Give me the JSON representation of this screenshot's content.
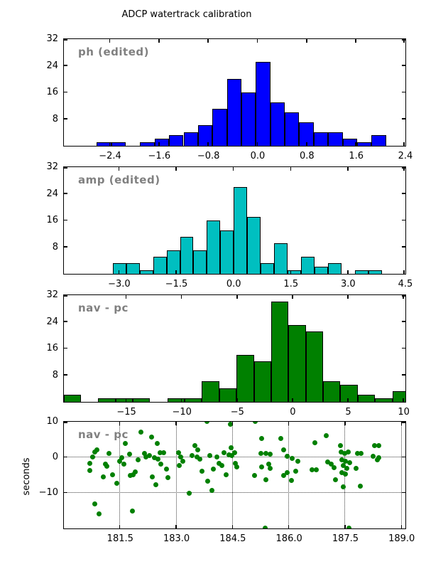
{
  "title": "ADCP watertrack calibration",
  "colors": {
    "hist_ph": "#0000ff",
    "hist_amp": "#00bfc0",
    "hist_nav": "#008000",
    "scatter_nav": "#008000",
    "panel_label_gray": "#808080",
    "axis_black": "#000000"
  },
  "bottom_axis_label": "seconds",
  "chart_data": [
    {
      "type": "bar",
      "subtype": "histogram",
      "label": "ph (edited)",
      "color": "#0000ff",
      "xlim": [
        -3.15,
        2.4
      ],
      "ylim": [
        0,
        32
      ],
      "bin_start": -2.61,
      "bin_width": 0.235,
      "values": [
        1,
        1,
        0,
        1,
        2,
        3,
        4,
        6,
        11,
        20,
        16,
        25,
        13,
        10,
        7,
        4,
        4,
        2,
        1,
        3
      ],
      "xticks": [
        {
          "v": -2.4,
          "label": "−2.4"
        },
        {
          "v": -1.6,
          "label": "−1.6"
        },
        {
          "v": -0.8,
          "label": "−0.8"
        },
        {
          "v": 0.0,
          "label": "0.0"
        },
        {
          "v": 0.8,
          "label": "0.8"
        },
        {
          "v": 1.6,
          "label": "1.6"
        },
        {
          "v": 2.4,
          "label": "2.4"
        }
      ],
      "yticks": [
        {
          "v": 8,
          "label": "8"
        },
        {
          "v": 16,
          "label": "16"
        },
        {
          "v": 24,
          "label": "24"
        },
        {
          "v": 32,
          "label": "32"
        }
      ],
      "grid": false
    },
    {
      "type": "bar",
      "subtype": "histogram",
      "label": "amp (edited)",
      "color": "#00bfc0",
      "xlim": [
        -4.45,
        4.5
      ],
      "ylim": [
        0,
        32
      ],
      "bin_start": -3.16,
      "bin_width": 0.3525,
      "values": [
        3,
        3,
        1,
        5,
        7,
        11,
        7,
        16,
        13,
        26,
        17,
        3,
        9,
        1,
        5,
        2,
        3,
        0,
        1,
        1
      ],
      "xticks": [
        {
          "v": -3.0,
          "label": "−3.0"
        },
        {
          "v": -1.5,
          "label": "−1.5"
        },
        {
          "v": 0.0,
          "label": "0.0"
        },
        {
          "v": 1.5,
          "label": "1.5"
        },
        {
          "v": 3.0,
          "label": "3.0"
        },
        {
          "v": 4.5,
          "label": "4.5"
        }
      ],
      "yticks": [
        {
          "v": 8,
          "label": "8"
        },
        {
          "v": 16,
          "label": "16"
        },
        {
          "v": 24,
          "label": "24"
        },
        {
          "v": 32,
          "label": "32"
        }
      ],
      "grid": false
    },
    {
      "type": "bar",
      "subtype": "histogram",
      "label": "nav - pc",
      "color": "#008000",
      "xlim": [
        -20.64,
        10.15
      ],
      "ylim": [
        0,
        32
      ],
      "bin_start": -20.64,
      "bin_width": 1.56,
      "values": [
        2,
        0,
        1,
        1,
        1,
        0,
        1,
        1,
        6,
        4,
        14,
        12,
        30,
        23,
        21,
        6,
        5,
        2,
        1,
        3
      ],
      "xticks": [
        {
          "v": -15,
          "label": "−15"
        },
        {
          "v": -10,
          "label": "−10"
        },
        {
          "v": -5,
          "label": "−5"
        },
        {
          "v": 0,
          "label": "0"
        },
        {
          "v": 5,
          "label": "5"
        },
        {
          "v": 10,
          "label": "10"
        }
      ],
      "yticks": [
        {
          "v": 8,
          "label": "8"
        },
        {
          "v": 16,
          "label": "16"
        },
        {
          "v": 24,
          "label": "24"
        },
        {
          "v": 32,
          "label": "32"
        }
      ],
      "grid": false
    },
    {
      "type": "scatter",
      "label": "nav - pc",
      "ylabel": "seconds",
      "color": "#008000",
      "marker_diameter_px": 7,
      "xlim": [
        180.0,
        189.1
      ],
      "ylim": [
        -20,
        10
      ],
      "xticks": [
        {
          "v": 181.5,
          "label": "181.5"
        },
        {
          "v": 183.0,
          "label": "183.0"
        },
        {
          "v": 184.5,
          "label": "184.5"
        },
        {
          "v": 186.0,
          "label": "186.0"
        },
        {
          "v": 187.5,
          "label": "187.5"
        },
        {
          "v": 189.0,
          "label": "189.0"
        }
      ],
      "yticks": [
        {
          "v": -10,
          "label": "−10"
        },
        {
          "v": 0,
          "label": "0"
        },
        {
          "v": 10,
          "label": "10"
        }
      ],
      "grid": true,
      "points": [
        [
          180.7,
          -1.8
        ],
        [
          180.7,
          -3.7
        ],
        [
          180.77,
          0.0
        ],
        [
          180.84,
          1.4
        ],
        [
          180.88,
          2.0
        ],
        [
          180.84,
          -13.1
        ],
        [
          180.94,
          -15.9
        ],
        [
          181.05,
          -5.6
        ],
        [
          181.12,
          -2.0
        ],
        [
          181.16,
          -2.6
        ],
        [
          181.21,
          1.1
        ],
        [
          181.3,
          -4.9
        ],
        [
          181.41,
          -7.3
        ],
        [
          181.49,
          -1.2
        ],
        [
          181.56,
          -0.1
        ],
        [
          181.6,
          -1.9
        ],
        [
          181.65,
          3.9
        ],
        [
          181.75,
          0.9
        ],
        [
          181.78,
          -5.2
        ],
        [
          181.84,
          -15.2
        ],
        [
          181.86,
          -5.0
        ],
        [
          181.92,
          -4.2
        ],
        [
          181.99,
          -0.7
        ],
        [
          182.07,
          7.0
        ],
        [
          182.15,
          1.1
        ],
        [
          182.2,
          0.0
        ],
        [
          182.28,
          0.4
        ],
        [
          182.34,
          5.6
        ],
        [
          182.37,
          -5.6
        ],
        [
          182.42,
          -0.1
        ],
        [
          182.45,
          -7.8
        ],
        [
          182.5,
          3.8
        ],
        [
          182.51,
          -0.5
        ],
        [
          182.58,
          1.2
        ],
        [
          182.6,
          -2.0
        ],
        [
          182.66,
          1.2
        ],
        [
          182.74,
          -3.4
        ],
        [
          182.79,
          -5.7
        ],
        [
          183.06,
          1.2
        ],
        [
          183.09,
          -2.3
        ],
        [
          183.13,
          0.0
        ],
        [
          183.17,
          -1.2
        ],
        [
          183.35,
          -10.2
        ],
        [
          183.43,
          0.4
        ],
        [
          183.5,
          3.3
        ],
        [
          183.55,
          0.0
        ],
        [
          183.58,
          2.0
        ],
        [
          183.63,
          -0.5
        ],
        [
          183.68,
          -3.9
        ],
        [
          183.82,
          10.0
        ],
        [
          183.84,
          -6.8
        ],
        [
          183.9,
          0.4
        ],
        [
          183.95,
          -9.3
        ],
        [
          184.0,
          -3.4
        ],
        [
          184.08,
          0.0
        ],
        [
          184.14,
          -1.8
        ],
        [
          184.22,
          -2.3
        ],
        [
          184.27,
          1.2
        ],
        [
          184.33,
          -5.0
        ],
        [
          184.45,
          9.3
        ],
        [
          184.47,
          2.6
        ],
        [
          184.49,
          0.4
        ],
        [
          184.4,
          0.7
        ],
        [
          184.56,
          1.2
        ],
        [
          184.58,
          -1.8
        ],
        [
          184.62,
          -2.7
        ],
        [
          185.1,
          10.0
        ],
        [
          185.09,
          -5.2
        ],
        [
          185.25,
          1.1
        ],
        [
          185.28,
          5.3
        ],
        [
          185.28,
          -2.7
        ],
        [
          185.38,
          -20.0
        ],
        [
          185.39,
          -6.3
        ],
        [
          185.4,
          1.1
        ],
        [
          185.46,
          -2.0
        ],
        [
          185.5,
          0.8
        ],
        [
          185.51,
          -3.2
        ],
        [
          185.78,
          5.3
        ],
        [
          185.87,
          2.0
        ],
        [
          185.87,
          -5.2
        ],
        [
          185.96,
          0.2
        ],
        [
          185.96,
          -4.3
        ],
        [
          186.08,
          -6.6
        ],
        [
          186.1,
          -0.3
        ],
        [
          186.19,
          -3.9
        ],
        [
          186.24,
          -1.2
        ],
        [
          186.62,
          -3.6
        ],
        [
          186.69,
          4.1
        ],
        [
          186.73,
          -3.6
        ],
        [
          187.0,
          6.1
        ],
        [
          187.04,
          -1.4
        ],
        [
          187.13,
          -2.0
        ],
        [
          187.21,
          -2.9
        ],
        [
          187.24,
          -6.3
        ],
        [
          187.37,
          3.2
        ],
        [
          187.4,
          1.4
        ],
        [
          187.42,
          -0.7
        ],
        [
          187.42,
          -4.3
        ],
        [
          187.45,
          -2.4
        ],
        [
          187.45,
          -8.4
        ],
        [
          187.5,
          1.0
        ],
        [
          187.52,
          -1.2
        ],
        [
          187.52,
          -4.8
        ],
        [
          187.55,
          -3.2
        ],
        [
          187.58,
          1.4
        ],
        [
          187.61,
          -20.0
        ],
        [
          187.62,
          -1.6
        ],
        [
          187.79,
          -3.2
        ],
        [
          187.83,
          1.0
        ],
        [
          187.9,
          -8.2
        ],
        [
          187.93,
          1.0
        ],
        [
          188.25,
          0.2
        ],
        [
          188.28,
          3.2
        ],
        [
          188.36,
          -0.7
        ],
        [
          188.4,
          3.2
        ],
        [
          188.4,
          -0.2
        ]
      ]
    }
  ]
}
